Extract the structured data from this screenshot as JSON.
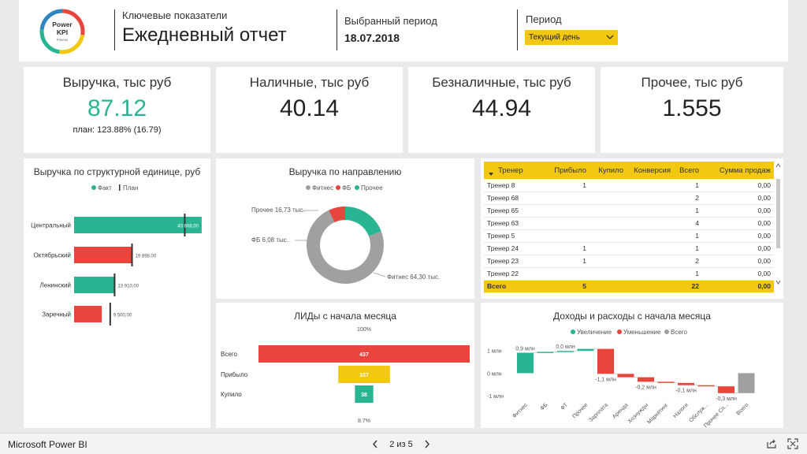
{
  "header": {
    "logo": {
      "line1": "Power",
      "line2": "KPI",
      "line3": "Fitness"
    },
    "subtitle": "Ключевые показатели",
    "title": "Ежедневный отчет",
    "period_label": "Выбранный период",
    "period_value": "18.07.2018",
    "filter_label": "Период",
    "filter_value": "Текущий день"
  },
  "kpis": [
    {
      "title": "Выручка, тыс руб",
      "value": "87.12",
      "sub": "план: 123.88% (16.79)",
      "value_color": "#2ab592"
    },
    {
      "title": "Наличные, тыс руб",
      "value": "40.14"
    },
    {
      "title": "Безналичные, тыс руб",
      "value": "44.94"
    },
    {
      "title": "Прочее, тыс руб",
      "value": "1.555"
    }
  ],
  "colors": {
    "fact": "#2ab592",
    "red": "#e8453c",
    "gray": "#a0a0a0",
    "yellow": "#f2c811",
    "dark": "#333333"
  },
  "chart_data": [
    {
      "type": "bar",
      "title": "Выручка по структурной единице, руб",
      "legend": [
        "Факт",
        "План"
      ],
      "legend_position": "top-center",
      "categories": [
        "Центральный",
        "Октябрьский",
        "Ленинский",
        "Заречный"
      ],
      "fact": [
        43808.0,
        19898.0,
        13910.0,
        9500.0
      ],
      "plan": [
        38000,
        19898,
        13910,
        12400
      ],
      "labels": [
        "43 808,00",
        "19 898,00",
        "13 910,00",
        "9 500,00"
      ],
      "bar_colors": [
        "#2ab592",
        "#e8453c",
        "#2ab592",
        "#e8453c"
      ],
      "xlim": [
        0,
        46000
      ]
    },
    {
      "type": "pie",
      "title": "Выручка по направлению",
      "legend": [
        "Фитнес",
        "ФБ",
        "Прочее"
      ],
      "legend_position": "top-center",
      "slices": [
        {
          "name": "Фитнес",
          "value": 64.3,
          "label": "Фитнес 64,30 тыс.",
          "color": "#a0a0a0"
        },
        {
          "name": "ФБ",
          "value": 6.08,
          "label": "ФБ 6,08 тыс.",
          "color": "#e8453c"
        },
        {
          "name": "Прочее",
          "value": 16.73,
          "label": "Прочее 16,73 тыс.",
          "color": "#2ab592"
        }
      ]
    },
    {
      "type": "table",
      "columns": [
        "Тренер",
        "Прибыло",
        "Купило",
        "Конверсия",
        "Всего",
        "Сумма продаж"
      ],
      "rows": [
        [
          "Тренер 8",
          "1",
          "",
          "",
          "1",
          "0,00"
        ],
        [
          "Тренер 68",
          "",
          "",
          "",
          "2",
          "0,00"
        ],
        [
          "Тренер 65",
          "",
          "",
          "",
          "1",
          "0,00"
        ],
        [
          "Тренер 63",
          "",
          "",
          "",
          "4",
          "0,00"
        ],
        [
          "Тренер 5",
          "",
          "",
          "",
          "1",
          "0,00"
        ],
        [
          "Тренер 24",
          "1",
          "",
          "",
          "1",
          "0,00"
        ],
        [
          "Тренер 23",
          "1",
          "",
          "",
          "2",
          "0,00"
        ],
        [
          "Тренер 22",
          "",
          "",
          "",
          "1",
          "0,00"
        ]
      ],
      "total": [
        "Всего",
        "5",
        "",
        "",
        "22",
        "0,00"
      ]
    },
    {
      "type": "bar",
      "title": "ЛИДы с начала месяца",
      "categories": [
        "Всего",
        "Прибыло",
        "Купило"
      ],
      "values": [
        437,
        107,
        38
      ],
      "bar_colors": [
        "#e8453c",
        "#f2c811",
        "#2ab592"
      ],
      "top_label": "100%",
      "bottom_label": "8.7%"
    },
    {
      "type": "bar",
      "title": "Доходы и расходы с начала месяца",
      "legend": [
        "Увеличение",
        "Уменьшение",
        "Всего"
      ],
      "legend_position": "top-center",
      "categories": [
        "Фитнес",
        "ФБ",
        "ФТ",
        "Прочее",
        "Зарплата",
        "Аренда",
        "Хознужды",
        "Маркетинг",
        "Налоги",
        "Обслуж...",
        "Прочее Сп...",
        "Всего"
      ],
      "deltas": [
        0.9,
        0.04,
        0.04,
        0.09,
        -1.1,
        -0.15,
        -0.2,
        -0.05,
        -0.1,
        -0.05,
        -0.3,
        -0.8
      ],
      "labels": [
        "0,9 млн",
        "",
        "0,0 млн",
        "",
        "-1,1 млн",
        "",
        "-0,2 млн",
        "",
        "-0,1 млн",
        "",
        "-0,3 млн",
        ""
      ],
      "y_ticks": [
        "1 млн",
        "0 млн",
        "-1 млн"
      ],
      "ylim": [
        -1.2,
        1.3
      ]
    }
  ],
  "footer": {
    "app": "Microsoft Power BI",
    "page": "2 из 5"
  }
}
